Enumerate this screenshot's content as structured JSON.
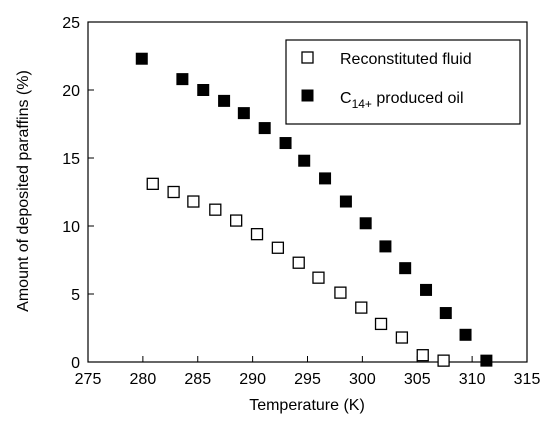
{
  "chart_data": {
    "type": "scatter",
    "xlabel": "Temperature (K)",
    "ylabel": "Amount of deposited paraffins (%)",
    "xlim": [
      275,
      315
    ],
    "ylim": [
      0,
      25
    ],
    "xticks": [
      275,
      280,
      285,
      290,
      295,
      300,
      305,
      310,
      315
    ],
    "yticks": [
      0,
      5,
      10,
      15,
      20,
      25
    ],
    "grid": false,
    "legend_position": "top-right",
    "series": [
      {
        "name": "Reconstituted fluid",
        "marker": "open-square",
        "color": "#000000",
        "x": [
          280.9,
          282.8,
          284.6,
          286.6,
          288.5,
          290.4,
          292.3,
          294.2,
          296.0,
          298.0,
          299.9,
          301.7,
          303.6,
          305.5,
          307.4
        ],
        "y": [
          13.1,
          12.5,
          11.8,
          11.2,
          10.4,
          9.4,
          8.4,
          7.3,
          6.2,
          5.1,
          4.0,
          2.8,
          1.8,
          0.5,
          0.1
        ]
      },
      {
        "name_prefix": "C",
        "name_sub": "14+",
        "name_suffix": " produced oil",
        "marker": "filled-square",
        "color": "#000000",
        "x": [
          279.9,
          283.6,
          285.5,
          287.4,
          289.2,
          291.1,
          293.0,
          294.7,
          296.6,
          298.5,
          300.3,
          302.1,
          303.9,
          305.8,
          307.6,
          309.4,
          311.3
        ],
        "y": [
          22.3,
          20.8,
          20.0,
          19.2,
          18.3,
          17.2,
          16.1,
          14.8,
          13.5,
          11.8,
          10.2,
          8.5,
          6.9,
          5.3,
          3.6,
          2.0,
          0.1
        ]
      }
    ]
  }
}
